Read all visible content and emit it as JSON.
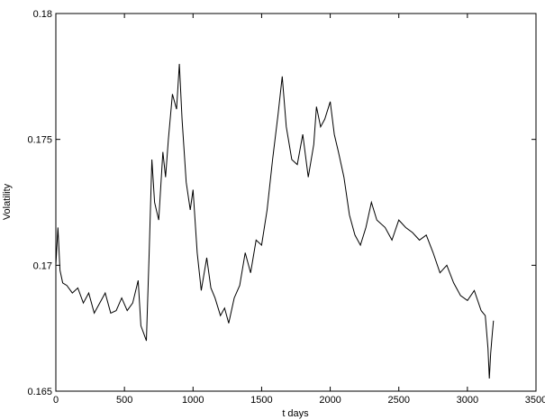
{
  "chart_data": {
    "type": "line",
    "title": "",
    "xlabel": "t days",
    "ylabel": "Volatility",
    "xlim": [
      0,
      3500
    ],
    "ylim": [
      0.165,
      0.18
    ],
    "x_ticks": [
      0,
      500,
      1000,
      1500,
      2000,
      2500,
      3000,
      3500
    ],
    "y_ticks": [
      0.165,
      0.17,
      0.175,
      0.18
    ],
    "x_tick_labels": [
      "0",
      "500",
      "1000",
      "1500",
      "2000",
      "2500",
      "3000",
      "3500"
    ],
    "y_tick_labels": [
      "0.165",
      "0.17",
      "0.175",
      "0.18"
    ],
    "grid": false,
    "line_color": "#000000",
    "series": [
      {
        "x": [
          0,
          15,
          30,
          50,
          80,
          120,
          160,
          200,
          240,
          280,
          320,
          360,
          400,
          440,
          480,
          520,
          560,
          600,
          620,
          640,
          660,
          680,
          700,
          720,
          750,
          780,
          800,
          820,
          850,
          880,
          900,
          920,
          950,
          980,
          1000,
          1030,
          1060,
          1100,
          1130,
          1160,
          1200,
          1230,
          1260,
          1300,
          1340,
          1380,
          1420,
          1460,
          1500,
          1540,
          1580,
          1620,
          1650,
          1680,
          1720,
          1760,
          1800,
          1840,
          1880,
          1900,
          1930,
          1960,
          2000,
          2030,
          2060,
          2100,
          2140,
          2180,
          2220,
          2260,
          2300,
          2340,
          2400,
          2450,
          2500,
          2550,
          2600,
          2650,
          2700,
          2750,
          2800,
          2850,
          2900,
          2950,
          3000,
          3050,
          3100,
          3130,
          3150,
          3160,
          3170,
          3180,
          3190
        ],
        "y": [
          0.17,
          0.1715,
          0.1698,
          0.1693,
          0.1692,
          0.1689,
          0.1691,
          0.1685,
          0.1689,
          0.1681,
          0.1685,
          0.1689,
          0.1681,
          0.1682,
          0.1687,
          0.1682,
          0.1685,
          0.1694,
          0.1676,
          0.1673,
          0.167,
          0.1705,
          0.1742,
          0.1725,
          0.1718,
          0.1745,
          0.1735,
          0.175,
          0.1768,
          0.1762,
          0.178,
          0.1758,
          0.1733,
          0.1722,
          0.173,
          0.1705,
          0.169,
          0.1703,
          0.1691,
          0.1687,
          0.168,
          0.1683,
          0.1677,
          0.1687,
          0.1692,
          0.1705,
          0.1697,
          0.171,
          0.1708,
          0.1722,
          0.1742,
          0.176,
          0.1775,
          0.1755,
          0.1742,
          0.174,
          0.1752,
          0.1735,
          0.1748,
          0.1763,
          0.1755,
          0.1758,
          0.1765,
          0.1752,
          0.1745,
          0.1735,
          0.172,
          0.1712,
          0.1708,
          0.1715,
          0.1725,
          0.1718,
          0.1715,
          0.171,
          0.1718,
          0.1715,
          0.1713,
          0.171,
          0.1712,
          0.1705,
          0.1697,
          0.17,
          0.1693,
          0.1688,
          0.1686,
          0.169,
          0.1682,
          0.168,
          0.1667,
          0.1655,
          0.1665,
          0.1672,
          0.1678
        ]
      }
    ]
  }
}
